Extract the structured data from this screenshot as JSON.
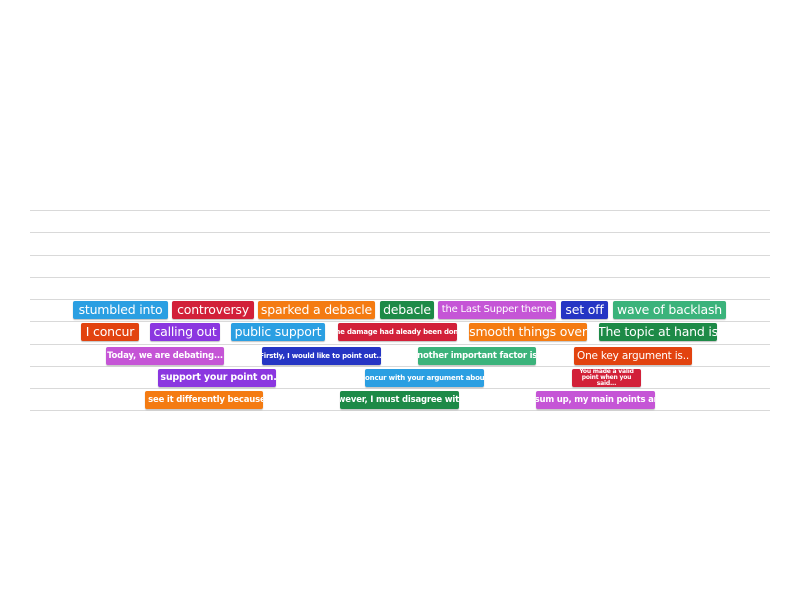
{
  "colors": {
    "blue": "#2b9fe2",
    "red": "#d22039",
    "orange": "#f47b12",
    "green": "#1d8a47",
    "pink": "#c555d6",
    "navy": "#2535c4",
    "teal": "#3bb37b",
    "redorange": "#e2430f",
    "purple": "#8b37e0",
    "line": "#d9d9d9"
  },
  "tiles": [
    "stumbled into",
    "controversy",
    "sparked a debacle",
    "debacle",
    "the Last Supper theme",
    "set off",
    "wave of backlash",
    "I concur",
    "calling out",
    "public support",
    "the damage had aleady been done",
    "smooth things over",
    "The topic at hand is",
    "Today, we are debating...",
    "Firstly, I would like to point out...",
    "Another important factor is..",
    "One key argument is..",
    "I support your point on..",
    "I concur with your argument about..",
    "You made a valid point when you said...",
    "I see it differently because",
    "However, I must disagree with...",
    "To sum up, my main points are.."
  ]
}
